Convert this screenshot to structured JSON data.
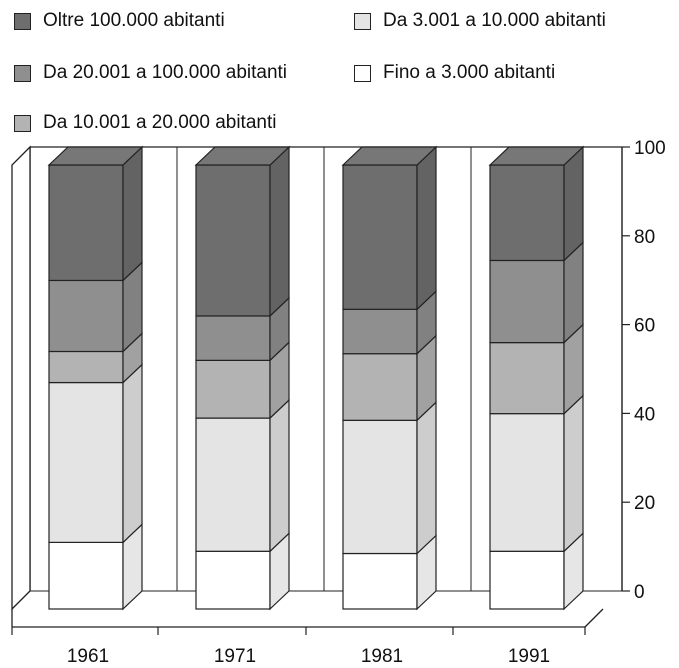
{
  "chart_data": {
    "type": "bar",
    "stacked": true,
    "categories": [
      "1961",
      "1971",
      "1981",
      "1991"
    ],
    "series": [
      {
        "name": "Fino a 3.000 abitanti",
        "color": "#ffffff",
        "values": [
          15,
          13,
          12.5,
          13
        ]
      },
      {
        "name": "Da 3.001 a 10.000 abitanti",
        "color": "#e4e4e4",
        "values": [
          36,
          30,
          30,
          31
        ]
      },
      {
        "name": "Da 10.001 a 20.000 abitanti",
        "color": "#b3b3b3",
        "values": [
          7,
          13,
          15,
          16
        ]
      },
      {
        "name": "Da 20.001 a 100.000 abitanti",
        "color": "#8f8f8f",
        "values": [
          16,
          10,
          10,
          18.5
        ]
      },
      {
        "name": "Oltre 100.000 abitanti",
        "color": "#6e6e6e",
        "values": [
          26,
          34,
          32.5,
          21.5
        ]
      }
    ],
    "ylim": [
      0,
      100
    ],
    "yticks": [
      "0",
      "20",
      "40",
      "60",
      "80",
      "100"
    ],
    "grid": false,
    "legend_position": "top",
    "legend_order": [
      "Oltre 100.000 abitanti",
      "Da 3.001 a 10.000 abitanti",
      "Da 20.001 a 100.000 abitanti",
      "Fino a 3.000 abitanti",
      "Da 10.001 a 20.000 abitanti"
    ]
  }
}
